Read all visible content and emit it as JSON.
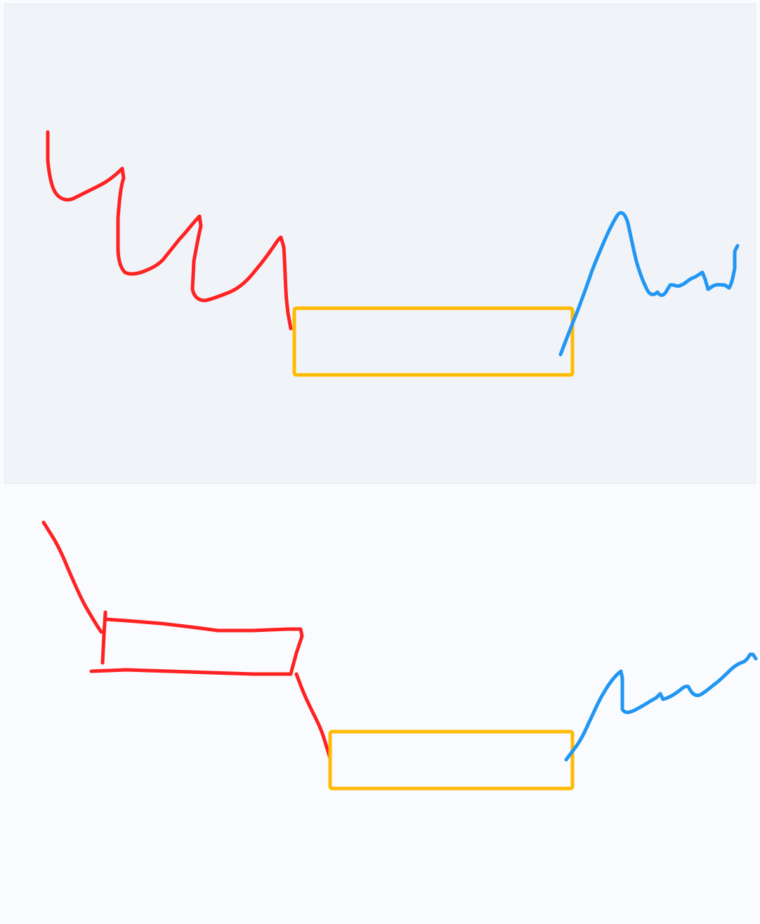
{
  "colors": {
    "red_stroke": "#ff2222",
    "blue_stroke": "#2196f3",
    "yellow_box": "#ffbb00",
    "top_panel_bg": "#f0f3f8",
    "bottom_panel_bg": "#f9fbfe"
  },
  "panels": [
    {
      "name": "top-sketch-panel",
      "elements": [
        "red-zigzag-stroke",
        "yellow-rectangle",
        "blue-wave-stroke"
      ]
    },
    {
      "name": "bottom-sketch-panel",
      "elements": [
        "red-slant-stroke",
        "red-bar-shape",
        "red-connector-stroke",
        "yellow-rectangle",
        "blue-wave-stroke"
      ]
    }
  ]
}
